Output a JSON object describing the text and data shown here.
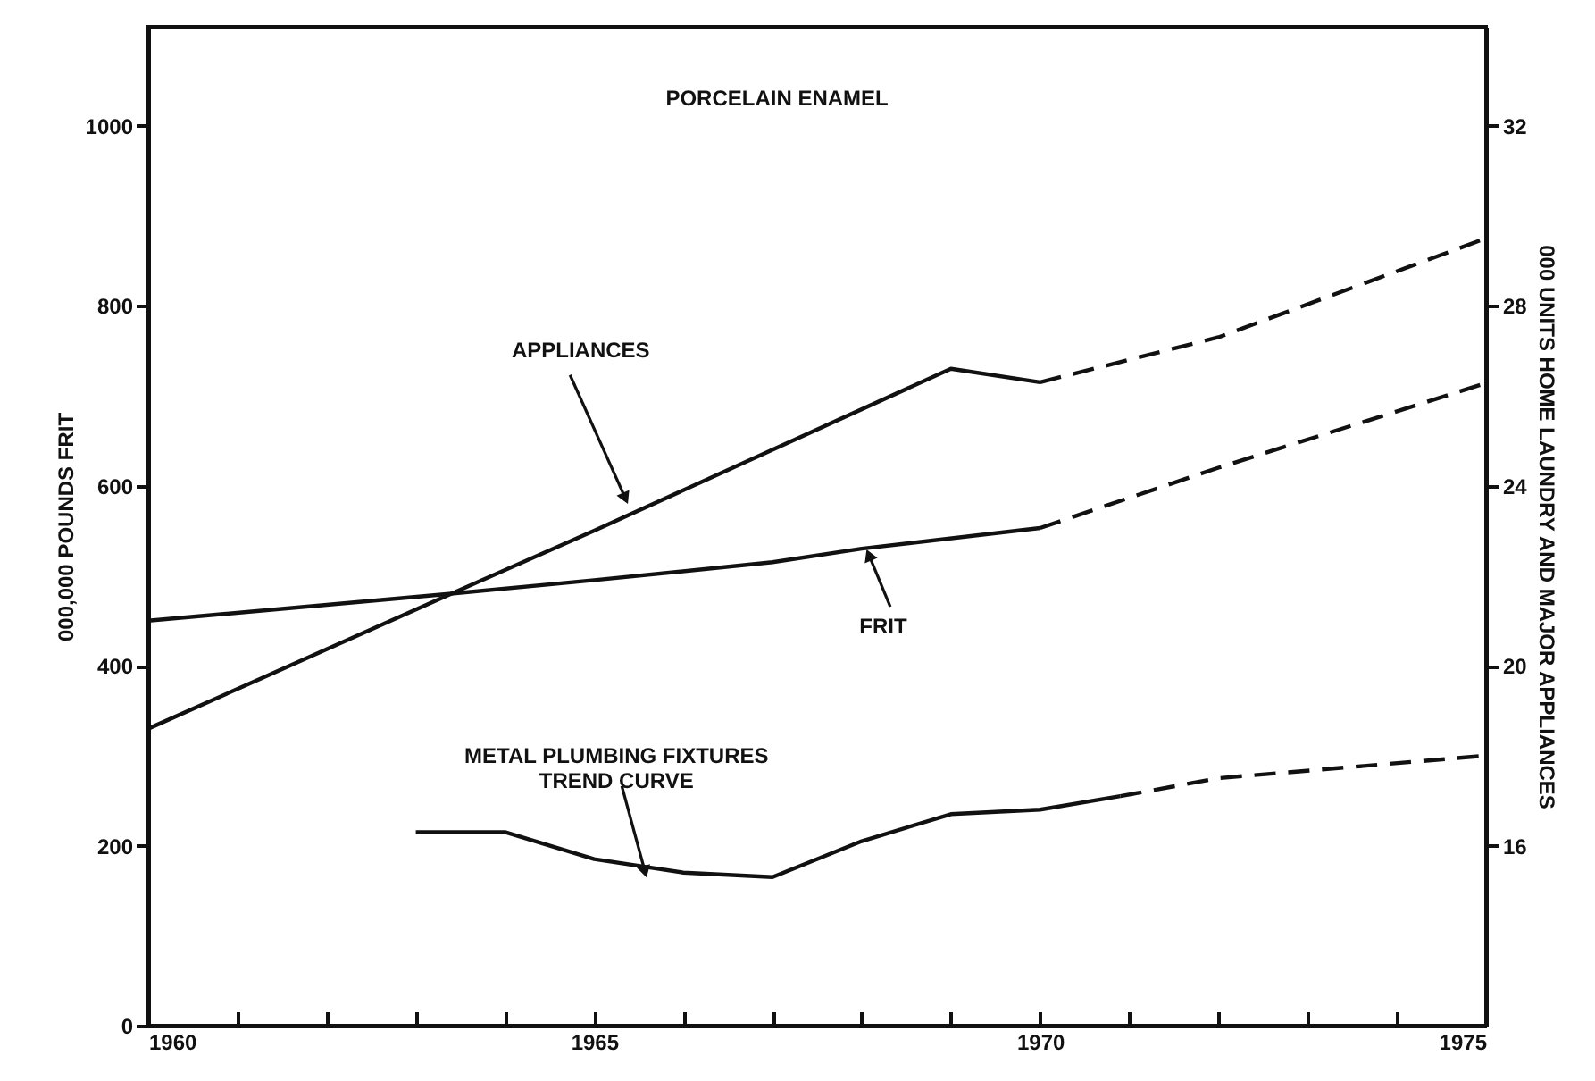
{
  "chart_data": {
    "type": "line",
    "title": "PORCELAIN ENAMEL",
    "ylabel": "000,000 POUNDS FRIT",
    "y2label": "000 UNITS HOME LAUNDRY AND MAJOR APPLIANCES",
    "xlim": [
      1960,
      1975
    ],
    "xticks": [
      1960,
      {
        "value": 1961,
        "label": null
      },
      {
        "value": 1962,
        "label": null
      },
      {
        "value": 1963,
        "label": null
      },
      {
        "value": 1964,
        "label": null
      },
      1965,
      {
        "value": 1966,
        "label": null
      },
      {
        "value": 1967,
        "label": null
      },
      {
        "value": 1968,
        "label": null
      },
      {
        "value": 1969,
        "label": null
      },
      1970,
      {
        "value": 1971,
        "label": null
      },
      {
        "value": 1972,
        "label": null
      },
      {
        "value": 1973,
        "label": null
      },
      {
        "value": 1974,
        "label": null
      },
      1975
    ],
    "ylim": [
      0,
      1110
    ],
    "yticks": [
      0,
      200,
      400,
      600,
      800,
      1000
    ],
    "y2lim": [
      12,
      34.2
    ],
    "y2ticks": [
      16,
      20,
      24,
      28,
      32
    ],
    "grid": false,
    "marker": "none",
    "series": [
      {
        "color": "#111111",
        "line_style": "solid",
        "x": [
          1960,
          1963.4,
          1965,
          1967,
          1968,
          1970
        ],
        "values": [
          450,
          480,
          495,
          515,
          530,
          553
        ]
      },
      {
        "color": "#111111",
        "line_style": "dashed",
        "x": [
          1970,
          1972,
          1975
        ],
        "values": [
          553,
          620,
          714
        ]
      },
      {
        "color": "#111111",
        "line_style": "solid",
        "axis": "y2",
        "x": [
          1960,
          1963.4,
          1965,
          1969,
          1970
        ],
        "values": [
          18.6,
          21.6,
          23.0,
          26.6,
          26.3
        ]
      },
      {
        "color": "#111111",
        "line_style": "dashed",
        "axis": "y2",
        "x": [
          1970,
          1972,
          1975
        ],
        "values": [
          26.3,
          27.3,
          29.5
        ]
      },
      {
        "color": "#111111",
        "line_style": "solid",
        "axis": "y2",
        "x": [
          1963,
          1964,
          1965,
          1966,
          1967,
          1968,
          1969,
          1970,
          1970.9
        ],
        "values": [
          16.3,
          16.3,
          15.7,
          15.4,
          15.3,
          16.1,
          16.7,
          16.8,
          17.1
        ]
      },
      {
        "color": "#111111",
        "line_style": "dashed",
        "axis": "y2",
        "x": [
          1970.9,
          1972,
          1975
        ],
        "values": [
          17.1,
          17.5,
          18.0
        ]
      }
    ],
    "annotations": [
      {
        "text": "APPLIANCES",
        "x": 1965.35,
        "y": 586
      },
      {
        "text": "FRIT",
        "x": 1968.08,
        "y": 523
      },
      {
        "text": "METAL PLUMBING FIXTURES\nTREND CURVE",
        "x": 1965.57,
        "y": 171
      }
    ]
  }
}
